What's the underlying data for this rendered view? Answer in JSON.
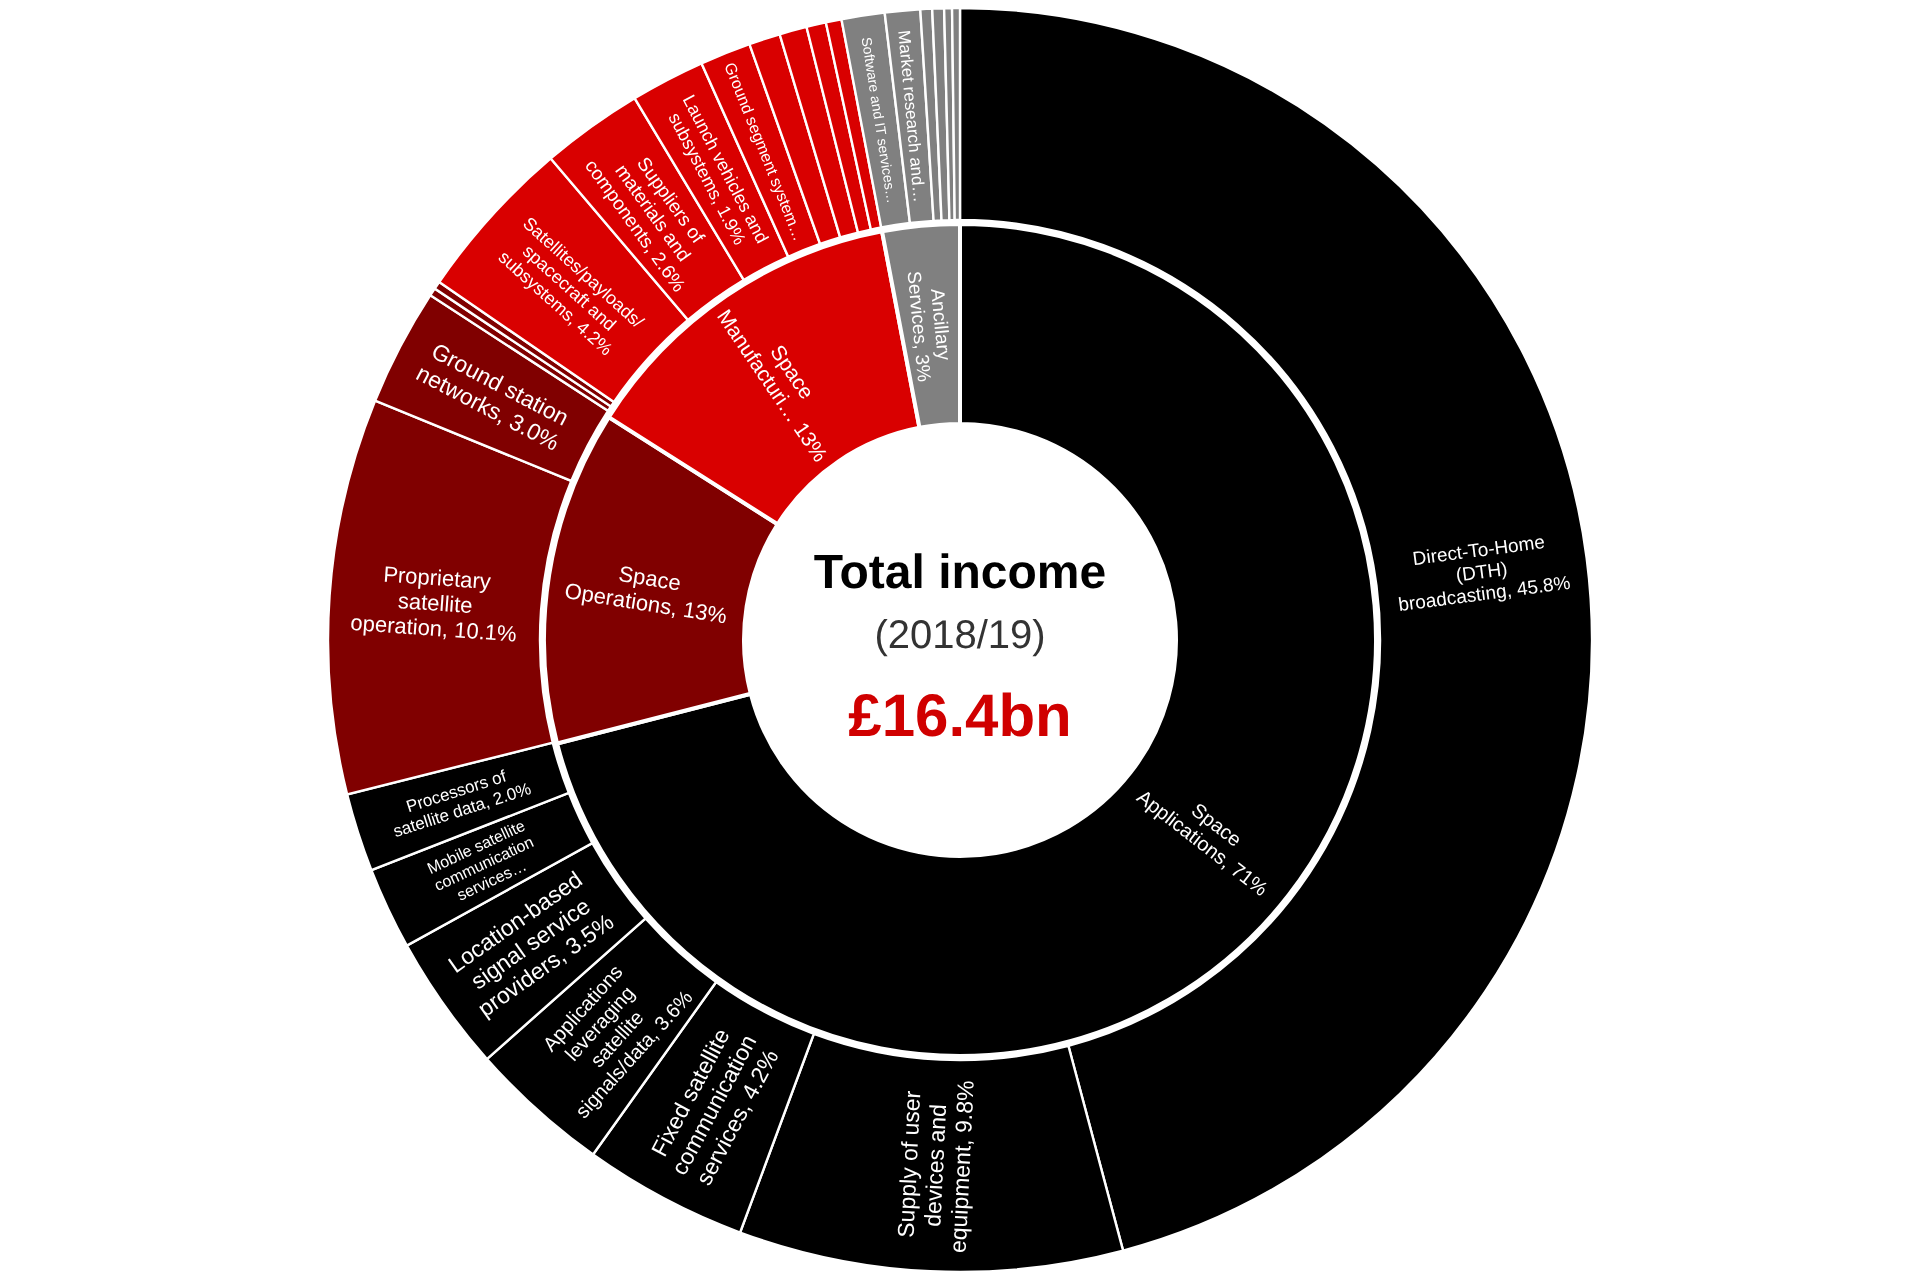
{
  "chart_data": [
    {
      "type": "donut",
      "title": "Total income",
      "subtitle": "(2018/19)",
      "annotations": [
        "£16.4bn"
      ],
      "categories": [
        "Space Applications",
        "Space Operations",
        "Space Manufacturi…",
        "Ancillary Services"
      ],
      "values": [
        71,
        13,
        13,
        3
      ],
      "value_labels": [
        "71%",
        "13%",
        "13%",
        "3%"
      ],
      "colors": [
        "#000000",
        "#800000",
        "#d90000",
        "#808080"
      ]
    },
    {
      "type": "donut",
      "categories": [
        "Direct-To-Home (DTH) broadcasting",
        "Supply of user devices and equipment",
        "Fixed satellite communication services",
        "Applications leveraging satellite signals/data",
        "Location-based signal service providers",
        "Mobile satellite communication services…",
        "Processors of satellite data",
        "Proprietary satellite operation",
        "Ground station networks",
        null,
        null,
        "Satellites/payloads/ spacecraft and subsystems",
        "Suppliers of materials and components",
        "Launch vehicles and subsystems",
        "Ground segment system…",
        null,
        null,
        null,
        null,
        "Software and IT services…",
        "Market research and…",
        null,
        null,
        null,
        null
      ],
      "values": [
        45.8,
        9.8,
        4.2,
        3.6,
        3.5,
        2.1,
        2.0,
        10.1,
        3.0,
        0.2,
        0.2,
        4.2,
        2.6,
        1.9,
        1.3,
        0.8,
        0.7,
        0.5,
        0.4,
        1.1,
        0.9,
        0.3,
        0.3,
        0.2,
        0.2
      ],
      "value_labels": [
        "45.8%",
        "9.8%",
        "4.2%",
        "3.6%",
        "3.5%",
        null,
        "2.0%",
        "10.1%",
        "3.0%",
        null,
        null,
        "4.2%",
        "2.6%",
        "1.9%",
        null,
        null,
        null,
        null,
        null,
        null,
        null,
        null,
        null,
        null,
        null
      ],
      "colors": [
        "#000000",
        "#000000",
        "#000000",
        "#000000",
        "#000000",
        "#000000",
        "#000000",
        "#800000",
        "#800000",
        "#800000",
        "#800000",
        "#d90000",
        "#d90000",
        "#d90000",
        "#d90000",
        "#d90000",
        "#d90000",
        "#d90000",
        "#d90000",
        "#808080",
        "#808080",
        "#808080",
        "#808080",
        "#808080",
        "#808080"
      ]
    }
  ]
}
